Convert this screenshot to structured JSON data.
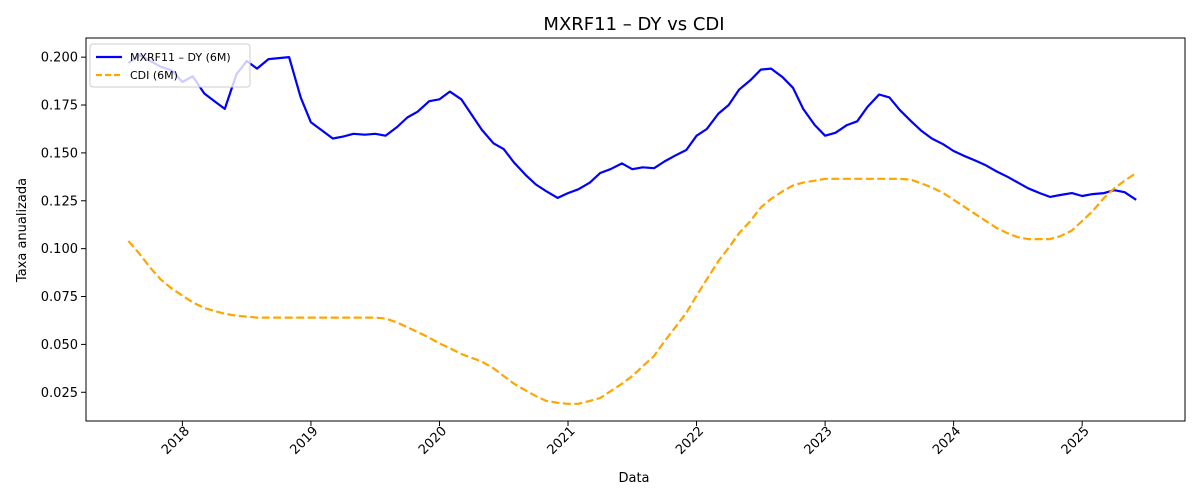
{
  "chart_data": {
    "type": "line",
    "title": "MXRF11 – DY vs CDI",
    "xlabel": "Data",
    "ylabel": "Taxa anualizada",
    "xlim": [
      2017.25,
      2025.8
    ],
    "ylim": [
      0.01,
      0.21
    ],
    "x_ticks": [
      2018,
      2019,
      2020,
      2021,
      2022,
      2023,
      2024,
      2025
    ],
    "x_tick_labels": [
      "2018",
      "2019",
      "2020",
      "2021",
      "2022",
      "2023",
      "2024",
      "2025"
    ],
    "y_ticks": [
      0.025,
      0.05,
      0.075,
      0.1,
      0.125,
      0.15,
      0.175,
      0.2
    ],
    "y_tick_labels": [
      "0.025",
      "0.050",
      "0.075",
      "0.100",
      "0.125",
      "0.150",
      "0.175",
      "0.200"
    ],
    "grid": false,
    "legend_position": "upper-left",
    "series": [
      {
        "name": "MXRF11 – DY (6M)",
        "color": "#0000ff",
        "style": "solid",
        "x": [
          2017.58,
          2017.67,
          2017.75,
          2017.83,
          2017.92,
          2018.0,
          2018.08,
          2018.17,
          2018.25,
          2018.33,
          2018.42,
          2018.5,
          2018.58,
          2018.67,
          2018.75,
          2018.83,
          2018.92,
          2019.0,
          2019.08,
          2019.17,
          2019.25,
          2019.33,
          2019.42,
          2019.5,
          2019.58,
          2019.67,
          2019.75,
          2019.83,
          2019.92,
          2020.0,
          2020.08,
          2020.17,
          2020.25,
          2020.33,
          2020.42,
          2020.5,
          2020.58,
          2020.67,
          2020.75,
          2020.83,
          2020.92,
          2021.0,
          2021.08,
          2021.17,
          2021.25,
          2021.33,
          2021.42,
          2021.5,
          2021.58,
          2021.67,
          2021.75,
          2021.83,
          2021.92,
          2022.0,
          2022.08,
          2022.17,
          2022.25,
          2022.33,
          2022.42,
          2022.5,
          2022.58,
          2022.67,
          2022.75,
          2022.83,
          2022.92,
          2023.0,
          2023.08,
          2023.17,
          2023.25,
          2023.33,
          2023.42,
          2023.5,
          2023.58,
          2023.67,
          2023.75,
          2023.83,
          2023.92,
          2024.0,
          2024.08,
          2024.17,
          2024.25,
          2024.33,
          2024.42,
          2024.5,
          2024.58,
          2024.67,
          2024.75,
          2024.83,
          2024.92,
          2025.0,
          2025.08,
          2025.17,
          2025.25,
          2025.33,
          2025.42
        ],
        "values": [
          0.197,
          0.201,
          0.198,
          0.195,
          0.193,
          0.187,
          0.19,
          0.181,
          0.177,
          0.173,
          0.191,
          0.198,
          0.194,
          0.199,
          0.1995,
          0.2,
          0.179,
          0.166,
          0.162,
          0.1575,
          0.1585,
          0.16,
          0.1595,
          0.16,
          0.159,
          0.1635,
          0.1685,
          0.1715,
          0.177,
          0.178,
          0.182,
          0.178,
          0.17,
          0.162,
          0.155,
          0.152,
          0.145,
          0.1385,
          0.1335,
          0.13,
          0.1265,
          0.129,
          0.131,
          0.1345,
          0.1395,
          0.1415,
          0.1445,
          0.1415,
          0.1425,
          0.142,
          0.1455,
          0.1485,
          0.1515,
          0.159,
          0.1625,
          0.1705,
          0.175,
          0.183,
          0.188,
          0.1935,
          0.194,
          0.1895,
          0.184,
          0.173,
          0.1645,
          0.159,
          0.1605,
          0.1645,
          0.1665,
          0.174,
          0.1805,
          0.179,
          0.1725,
          0.1665,
          0.1615,
          0.1575,
          0.1545,
          0.151,
          0.1485,
          0.146,
          0.1435,
          0.1405,
          0.1375,
          0.1345,
          0.1315,
          0.129,
          0.127,
          0.128,
          0.129,
          0.1275,
          0.1285,
          0.129,
          0.1305,
          0.1295,
          0.1255
        ]
      },
      {
        "name": "CDI (6M)",
        "color": "#ffa500",
        "style": "dashed",
        "x": [
          2017.58,
          2017.67,
          2017.75,
          2017.83,
          2017.92,
          2018.0,
          2018.08,
          2018.17,
          2018.25,
          2018.33,
          2018.42,
          2018.5,
          2018.58,
          2018.67,
          2018.75,
          2018.83,
          2018.92,
          2019.0,
          2019.08,
          2019.17,
          2019.25,
          2019.33,
          2019.42,
          2019.5,
          2019.58,
          2019.67,
          2019.75,
          2019.83,
          2019.92,
          2020.0,
          2020.08,
          2020.17,
          2020.25,
          2020.33,
          2020.42,
          2020.5,
          2020.58,
          2020.67,
          2020.75,
          2020.83,
          2020.92,
          2021.0,
          2021.08,
          2021.17,
          2021.25,
          2021.33,
          2021.42,
          2021.5,
          2021.58,
          2021.67,
          2021.75,
          2021.83,
          2021.92,
          2022.0,
          2022.08,
          2022.17,
          2022.25,
          2022.33,
          2022.42,
          2022.5,
          2022.58,
          2022.67,
          2022.75,
          2022.83,
          2022.92,
          2023.0,
          2023.08,
          2023.17,
          2023.25,
          2023.33,
          2023.42,
          2023.5,
          2023.58,
          2023.67,
          2023.75,
          2023.83,
          2023.92,
          2024.0,
          2024.08,
          2024.17,
          2024.25,
          2024.33,
          2024.42,
          2024.5,
          2024.58,
          2024.67,
          2024.75,
          2024.83,
          2024.92,
          2025.0,
          2025.08,
          2025.17,
          2025.25,
          2025.33,
          2025.42
        ],
        "values": [
          0.104,
          0.097,
          0.09,
          0.084,
          0.079,
          0.0755,
          0.072,
          0.069,
          0.0675,
          0.066,
          0.065,
          0.0645,
          0.064,
          0.064,
          0.064,
          0.064,
          0.064,
          0.064,
          0.064,
          0.064,
          0.064,
          0.064,
          0.064,
          0.064,
          0.0635,
          0.0615,
          0.059,
          0.0565,
          0.0535,
          0.0505,
          0.048,
          0.045,
          0.043,
          0.041,
          0.0375,
          0.0335,
          0.0295,
          0.026,
          0.023,
          0.0205,
          0.0195,
          0.019,
          0.019,
          0.0205,
          0.022,
          0.0255,
          0.0295,
          0.0335,
          0.0385,
          0.044,
          0.0515,
          0.0585,
          0.0665,
          0.0755,
          0.084,
          0.0935,
          0.1005,
          0.108,
          0.1145,
          0.1215,
          0.126,
          0.13,
          0.133,
          0.1345,
          0.1355,
          0.1365,
          0.1365,
          0.1365,
          0.1365,
          0.1365,
          0.1365,
          0.1365,
          0.1365,
          0.136,
          0.134,
          0.132,
          0.129,
          0.1255,
          0.122,
          0.118,
          0.1145,
          0.111,
          0.108,
          0.106,
          0.105,
          0.105,
          0.105,
          0.1065,
          0.1095,
          0.1145,
          0.1195,
          0.1265,
          0.1315,
          0.1355,
          0.1395
        ]
      }
    ]
  }
}
